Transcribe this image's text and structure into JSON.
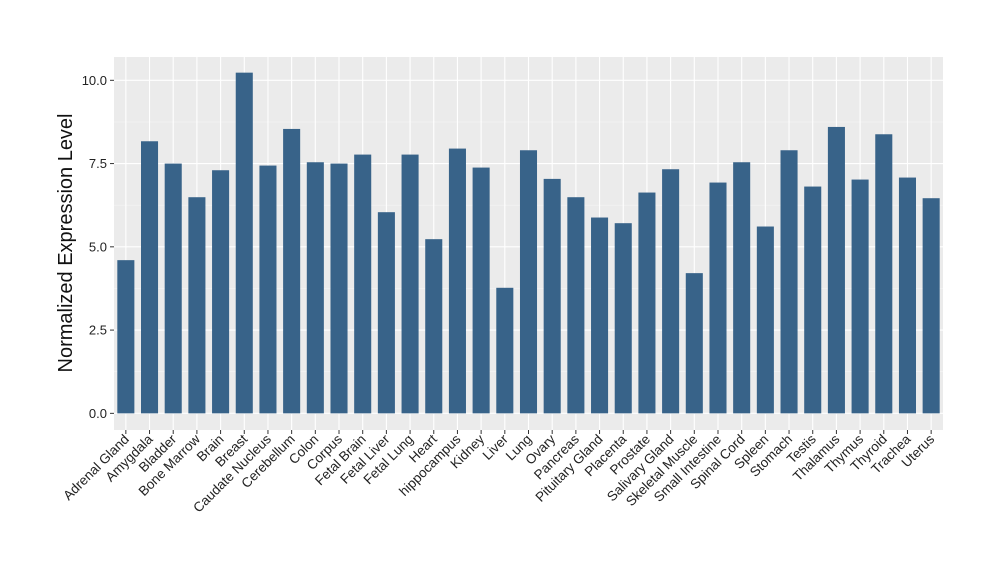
{
  "chart_data": {
    "type": "bar",
    "title": "",
    "xlabel": "",
    "ylabel": "Normalized Expression Level",
    "ylim": [
      -0.5,
      10.7
    ],
    "y_ticks": [
      0.0,
      2.5,
      5.0,
      7.5,
      10.0
    ],
    "y_tick_labels": [
      "0.0",
      "2.5",
      "5.0",
      "7.5",
      "10.0"
    ],
    "grid": true,
    "legend": "none",
    "categories": [
      "Adrenal Gland",
      "Amygdala",
      "Bladder",
      "Bone Marrow",
      "Brain",
      "Breast",
      "Caudate Nucleus",
      "Cerebellum",
      "Colon",
      "Corpus",
      "Fetal Brain",
      "Fetal Liver",
      "Fetal Lung",
      "Heart",
      "hippocampus",
      "Kidney",
      "Liver",
      "Lung",
      "Ovary",
      "Pancreas",
      "Pituitary Gland",
      "Placenta",
      "Prostate",
      "Salivary Gland",
      "Skeletal Muscle",
      "Small Intestine",
      "Spinal Cord",
      "Spleen",
      "Stomach",
      "Testis",
      "Thalamus",
      "Thymus",
      "Thyroid",
      "Trachea",
      "Uterus"
    ],
    "values": [
      4.6,
      8.17,
      7.5,
      6.49,
      7.3,
      10.23,
      7.44,
      8.54,
      7.54,
      7.5,
      7.77,
      6.04,
      7.77,
      5.23,
      7.95,
      7.38,
      3.77,
      7.9,
      7.04,
      6.49,
      5.88,
      5.71,
      6.63,
      7.33,
      4.21,
      6.93,
      7.54,
      5.61,
      7.9,
      6.81,
      8.6,
      7.02,
      8.38,
      7.08,
      6.46
    ]
  },
  "colors": {
    "bar": "#386389",
    "panel_background": "#ebebeb",
    "grid_major": "#ffffff",
    "grid_minor": "#f5f5f5"
  }
}
